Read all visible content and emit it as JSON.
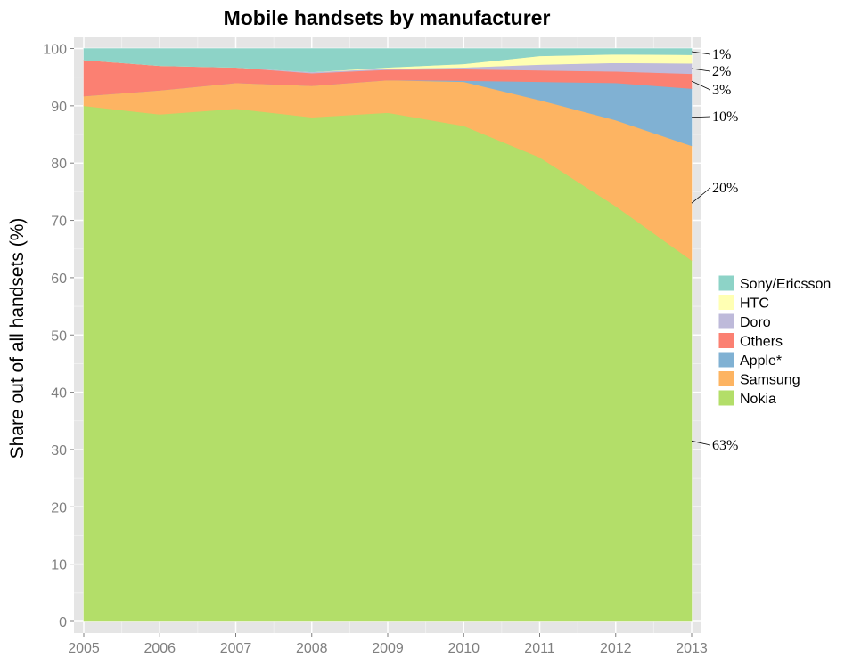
{
  "chart_data": {
    "type": "area",
    "stacked": true,
    "title": "Mobile handsets by manufacturer",
    "xlabel": "",
    "ylabel": "Share out of all handsets (%)",
    "x": [
      2005,
      2006,
      2007,
      2008,
      2009,
      2010,
      2011,
      2012,
      2013
    ],
    "ylim": [
      0,
      100
    ],
    "xlim": [
      2005,
      2013
    ],
    "yticks": [
      0,
      10,
      20,
      30,
      40,
      50,
      60,
      70,
      80,
      90,
      100
    ],
    "grid": true,
    "legend_position": "right",
    "background": "#e5e5e5",
    "series": [
      {
        "name": "Nokia",
        "color": "#b3de69",
        "values": [
          90,
          88.5,
          89.5,
          88,
          88.8,
          86.5,
          81,
          72.5,
          63
        ]
      },
      {
        "name": "Samsung",
        "color": "#fdb462",
        "values": [
          1.7,
          4.2,
          4.5,
          5.5,
          5.7,
          7.7,
          10,
          15,
          20
        ]
      },
      {
        "name": "Apple*",
        "color": "#80b1d3",
        "values": [
          0,
          0,
          0,
          0,
          0,
          0.2,
          3.2,
          6.5,
          10
        ]
      },
      {
        "name": "Others",
        "color": "#fb8072",
        "values": [
          6.3,
          4.3,
          2.7,
          2.2,
          1.8,
          2,
          2,
          2,
          2.6
        ]
      },
      {
        "name": "Doro",
        "color": "#bebada",
        "values": [
          0,
          0,
          0,
          0.2,
          0.2,
          0.3,
          1,
          1.5,
          1.8
        ]
      },
      {
        "name": "HTC",
        "color": "#ffffb3",
        "values": [
          0,
          0,
          0,
          0,
          0.2,
          0.6,
          1.5,
          1.5,
          1.5
        ]
      },
      {
        "name": "Sony/Ericsson",
        "color": "#8dd3c7",
        "values": [
          2,
          3,
          3.3,
          4.1,
          3.3,
          2.7,
          1.3,
          1,
          1.1
        ]
      }
    ],
    "legend_order": [
      "Sony/Ericsson",
      "HTC",
      "Doro",
      "Others",
      "Apple*",
      "Samsung",
      "Nokia"
    ],
    "annotations": [
      {
        "text": "1%",
        "series": "Sony/Ericsson"
      },
      {
        "text": "2%",
        "series": "Doro"
      },
      {
        "text": "3%",
        "series": "Others"
      },
      {
        "text": "10%",
        "series": "Apple*"
      },
      {
        "text": "20%",
        "series": "Samsung"
      },
      {
        "text": "63%",
        "series": "Nokia"
      }
    ]
  }
}
